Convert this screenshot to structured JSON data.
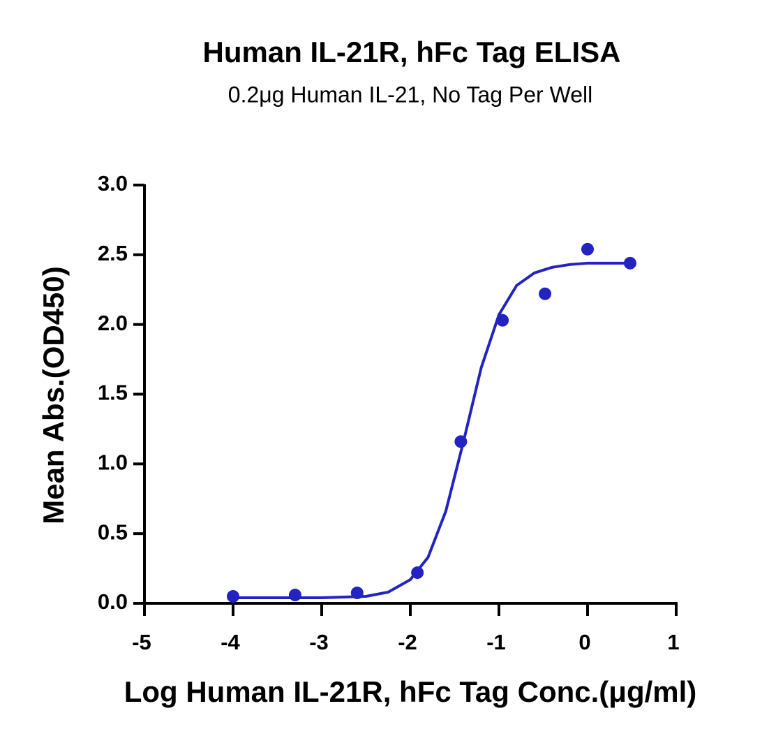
{
  "chart_data": {
    "type": "scatter",
    "title": "Human IL-21R, hFc Tag ELISA",
    "subtitle": "0.2μg Human IL-21, No Tag Per Well",
    "x_label": "Log Human IL-21R, hFc Tag Conc.(μg/ml)",
    "y_label": "Mean Abs.(OD450)",
    "color": "#2323c2",
    "x": [
      -4,
      -3.3,
      -2.6,
      -1.92,
      -1.43,
      -0.96,
      -0.48,
      0,
      0.48
    ],
    "values": [
      0.05,
      0.06,
      0.075,
      0.22,
      1.16,
      2.03,
      2.22,
      2.54,
      2.44
    ],
    "fit": {
      "x": [
        -4,
        -3.5,
        -3,
        -2.5,
        -2.25,
        -2,
        -1.8,
        -1.6,
        -1.4,
        -1.2,
        -1,
        -0.8,
        -0.6,
        -0.4,
        -0.2,
        0,
        0.25,
        0.48
      ],
      "values": [
        0.04,
        0.04,
        0.04,
        0.05,
        0.08,
        0.17,
        0.33,
        0.66,
        1.16,
        1.69,
        2.07,
        2.28,
        2.37,
        2.41,
        2.43,
        2.44,
        2.44,
        2.44
      ]
    },
    "xlim": [
      -5,
      1
    ],
    "ylim": [
      0,
      3
    ],
    "xticks": [
      -5,
      -4,
      -3,
      -2,
      -1,
      0,
      1
    ],
    "yticks": [
      {
        "value": 0,
        "label": "0.0"
      },
      0.5,
      {
        "value": 1,
        "label": "1.0"
      },
      1.5,
      {
        "value": 2,
        "label": "2.0"
      },
      2.5,
      {
        "value": 3,
        "label": "3.0"
      }
    ],
    "grid": false
  }
}
